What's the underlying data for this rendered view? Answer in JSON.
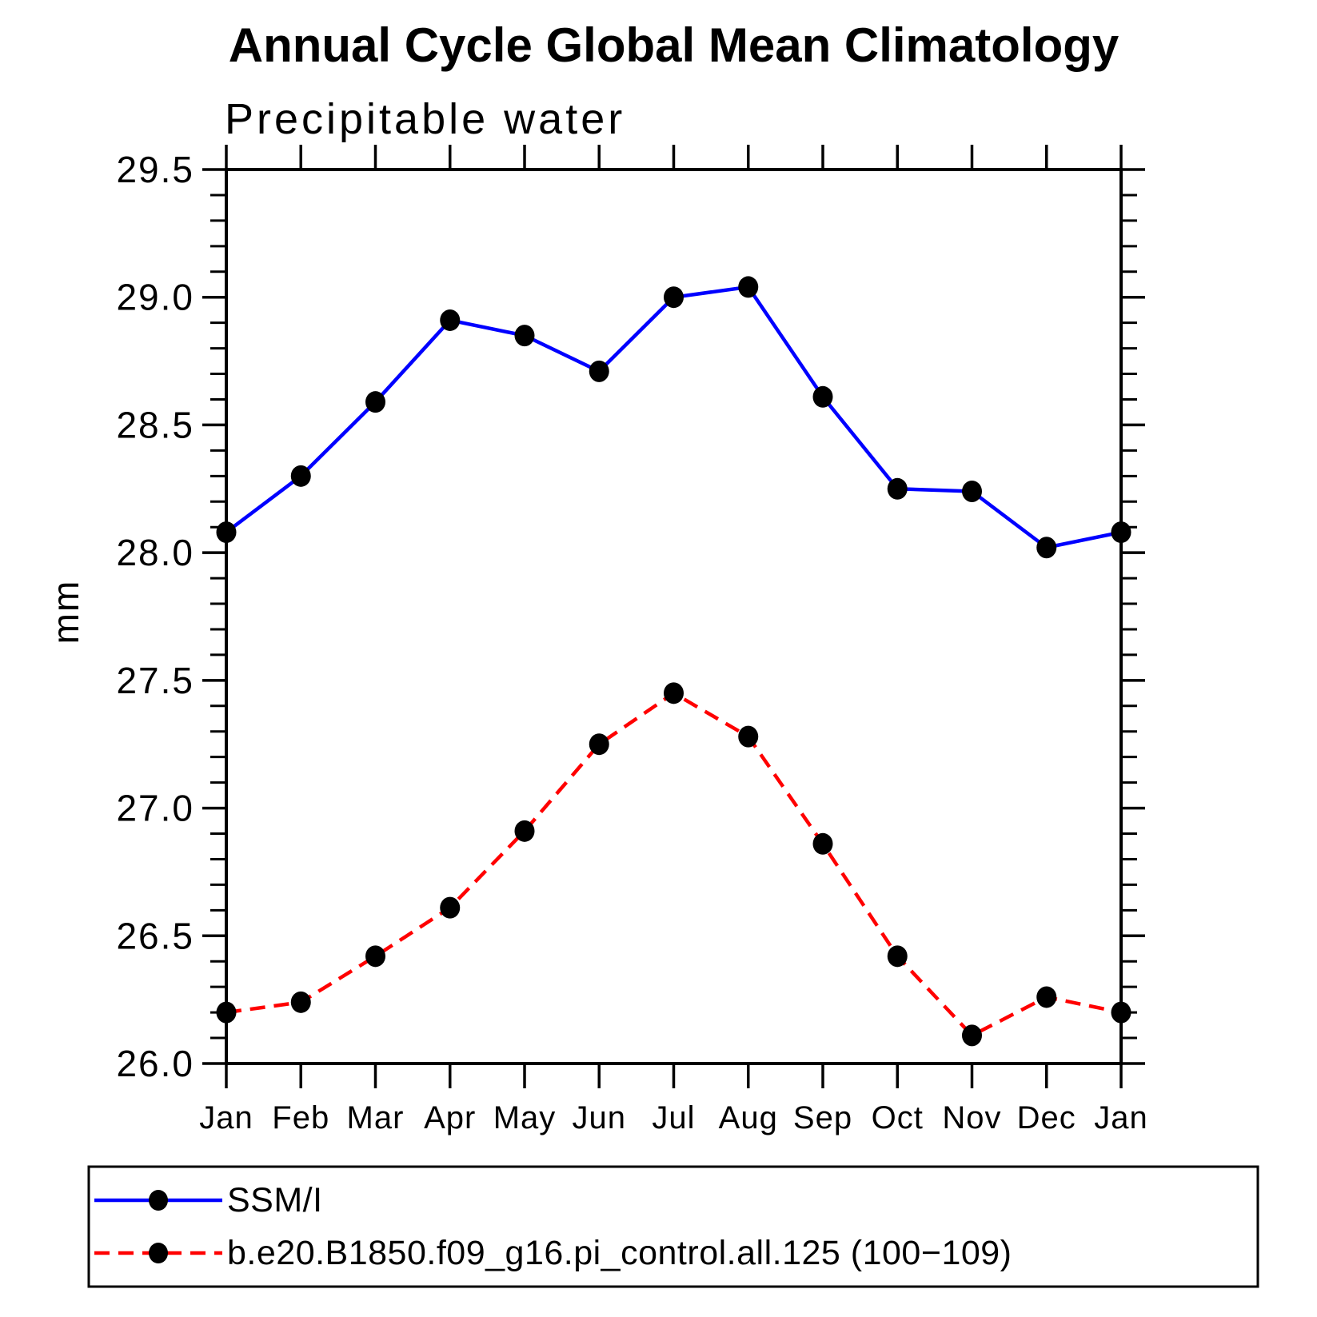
{
  "chart_data": {
    "type": "line",
    "title": "Annual Cycle Global Mean Climatology",
    "subtitle": "Precipitable water",
    "ylabel": "mm",
    "xlabel": "",
    "categories": [
      "Jan",
      "Feb",
      "Mar",
      "Apr",
      "May",
      "Jun",
      "Jul",
      "Aug",
      "Sep",
      "Oct",
      "Nov",
      "Dec",
      "Jan"
    ],
    "series": [
      {
        "name": "SSM/I",
        "line_color": "#0000ff",
        "line_style": "solid",
        "marker": "filled-circle",
        "marker_color": "#000000",
        "values": [
          28.08,
          28.3,
          28.59,
          28.91,
          28.85,
          28.71,
          29.0,
          29.04,
          28.61,
          28.25,
          28.24,
          28.02,
          28.08
        ]
      },
      {
        "name": "b.e20.B1850.f09_g16.pi_control.all.125 (100−109)",
        "line_color": "#ff0000",
        "line_style": "dashed",
        "marker": "filled-circle",
        "marker_color": "#000000",
        "values": [
          26.2,
          26.24,
          26.42,
          26.61,
          26.91,
          27.25,
          27.45,
          27.28,
          26.86,
          26.42,
          26.11,
          26.26,
          26.2
        ]
      }
    ],
    "ylim": [
      26.0,
      29.5
    ],
    "y_major_step": 0.5,
    "y_minor_step": 0.1,
    "y_tick_labels": [
      "26.0",
      "26.5",
      "27.0",
      "27.5",
      "28.0",
      "28.5",
      "29.0",
      "29.5"
    ],
    "grid": false,
    "axis_color": "#000000",
    "legend_position": "bottom-left-box"
  }
}
